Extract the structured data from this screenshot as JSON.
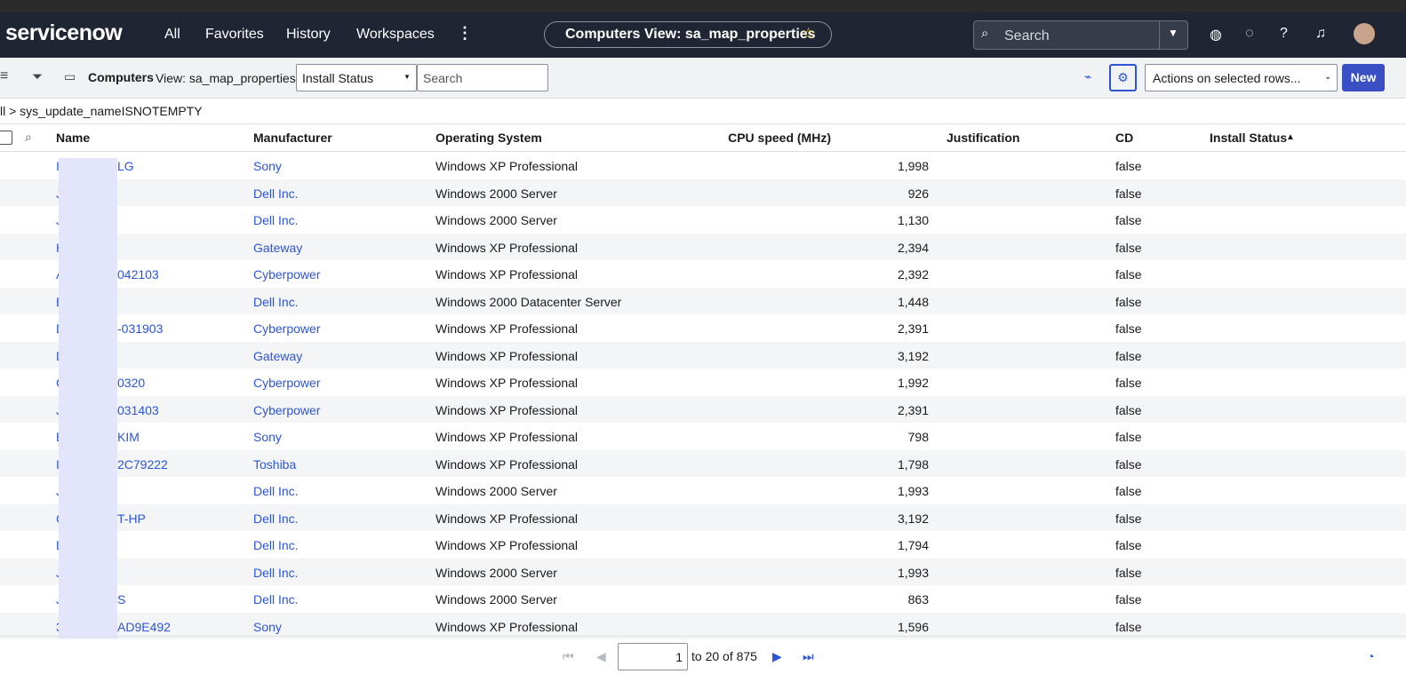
{
  "nav": {
    "logo": "servicenow",
    "items": [
      "All",
      "Favorites",
      "History",
      "Workspaces"
    ],
    "title": "Computers View: sa_map_properties",
    "search": "Search"
  },
  "toolbar": {
    "list_title": "Computers",
    "view": "View: sa_map_properties",
    "field": "Install Status",
    "search": "Search",
    "actions": "Actions on selected rows...",
    "new": "New"
  },
  "breadcrumb": "ll > sys_update_nameISNOTEMPTY",
  "table": {
    "columns": [
      "Name",
      "Manufacturer",
      "Operating System",
      "CPU speed (MHz)",
      "Justification",
      "CD",
      "Install Status"
    ],
    "rows": [
      {
        "name": [
          "I",
          "LG"
        ],
        "manufacturer": "Sony",
        "os": "Windows XP Professional",
        "cpu": "1,998",
        "cd": "false"
      },
      {
        "name": [
          "J"
        ],
        "manufacturer": "Dell Inc.",
        "os": "Windows 2000 Server",
        "cpu": "926",
        "cd": "false"
      },
      {
        "name": [
          "J"
        ],
        "manufacturer": "Dell Inc.",
        "os": "Windows 2000 Server",
        "cpu": "1,130",
        "cd": "false"
      },
      {
        "name": [
          "H"
        ],
        "manufacturer": "Gateway",
        "os": "Windows XP Professional",
        "cpu": "2,394",
        "cd": "false"
      },
      {
        "name": [
          "A",
          "042103"
        ],
        "manufacturer": "Cyberpower",
        "os": "Windows XP Professional",
        "cpu": "2,392",
        "cd": "false"
      },
      {
        "name": [
          "E"
        ],
        "manufacturer": "Dell Inc.",
        "os": "Windows 2000 Datacenter Server",
        "cpu": "1,448",
        "cd": "false"
      },
      {
        "name": [
          "D",
          "-031903"
        ],
        "manufacturer": "Cyberpower",
        "os": "Windows XP Professional",
        "cpu": "2,391",
        "cd": "false"
      },
      {
        "name": [
          "D"
        ],
        "manufacturer": "Gateway",
        "os": "Windows XP Professional",
        "cpu": "3,192",
        "cd": "false"
      },
      {
        "name": [
          "C",
          "0320"
        ],
        "manufacturer": "Cyberpower",
        "os": "Windows XP Professional",
        "cpu": "1,992",
        "cd": "false"
      },
      {
        "name": [
          "J",
          "031403"
        ],
        "manufacturer": "Cyberpower",
        "os": "Windows XP Professional",
        "cpu": "2,391",
        "cd": "false"
      },
      {
        "name": [
          "E",
          "KIM"
        ],
        "manufacturer": "Sony",
        "os": "Windows XP Professional",
        "cpu": "798",
        "cd": "false"
      },
      {
        "name": [
          "I",
          "2C79222"
        ],
        "manufacturer": "Toshiba",
        "os": "Windows XP Professional",
        "cpu": "1,798",
        "cd": "false"
      },
      {
        "name": [
          "J"
        ],
        "manufacturer": "Dell Inc.",
        "os": "Windows 2000 Server",
        "cpu": "1,993",
        "cd": "false"
      },
      {
        "name": [
          "C",
          "T-HP"
        ],
        "manufacturer": "Dell Inc.",
        "os": "Windows XP Professional",
        "cpu": "3,192",
        "cd": "false"
      },
      {
        "name": [
          "D"
        ],
        "manufacturer": "Dell Inc.",
        "os": "Windows XP Professional",
        "cpu": "1,794",
        "cd": "false"
      },
      {
        "name": [
          "J"
        ],
        "manufacturer": "Dell Inc.",
        "os": "Windows 2000 Server",
        "cpu": "1,993",
        "cd": "false"
      },
      {
        "name": [
          "J",
          "S"
        ],
        "manufacturer": "Dell Inc.",
        "os": "Windows 2000 Server",
        "cpu": "863",
        "cd": "false"
      },
      {
        "name": [
          "3",
          "AD9E492"
        ],
        "manufacturer": "Sony",
        "os": "Windows XP Professional",
        "cpu": "1,596",
        "cd": "false"
      }
    ]
  },
  "pagination": {
    "page": "1",
    "range": "to 20 of 875"
  }
}
